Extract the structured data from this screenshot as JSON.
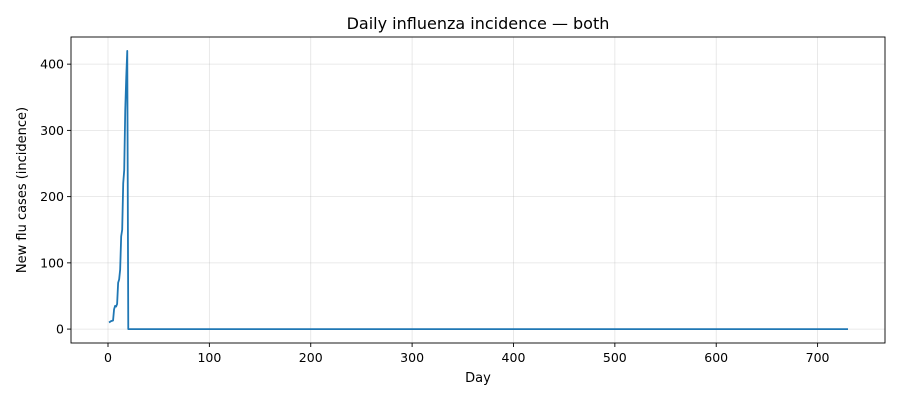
{
  "chart_data": {
    "type": "line",
    "title": "Daily influenza incidence — both",
    "xlabel": "Day",
    "ylabel": "New flu cases (incidence)",
    "xlim": [
      -36.5,
      766.5
    ],
    "ylim": [
      -21,
      441
    ],
    "xticks": [
      0,
      100,
      200,
      300,
      400,
      500,
      600,
      700
    ],
    "yticks": [
      0,
      100,
      200,
      300,
      400
    ],
    "grid": true,
    "colors": {
      "series": "#1f77b4"
    },
    "series": [
      {
        "values": [
          [
            1,
            10
          ],
          [
            3,
            12
          ],
          [
            5,
            13
          ],
          [
            6,
            30
          ],
          [
            7,
            35
          ],
          [
            8,
            34
          ],
          [
            9,
            38
          ],
          [
            10,
            70
          ],
          [
            11,
            75
          ],
          [
            12,
            90
          ],
          [
            13,
            140
          ],
          [
            14,
            150
          ],
          [
            15,
            220
          ],
          [
            16,
            240
          ],
          [
            17,
            330
          ],
          [
            18,
            380
          ],
          [
            19,
            420
          ],
          [
            20,
            0
          ],
          [
            730,
            0
          ]
        ]
      }
    ]
  }
}
